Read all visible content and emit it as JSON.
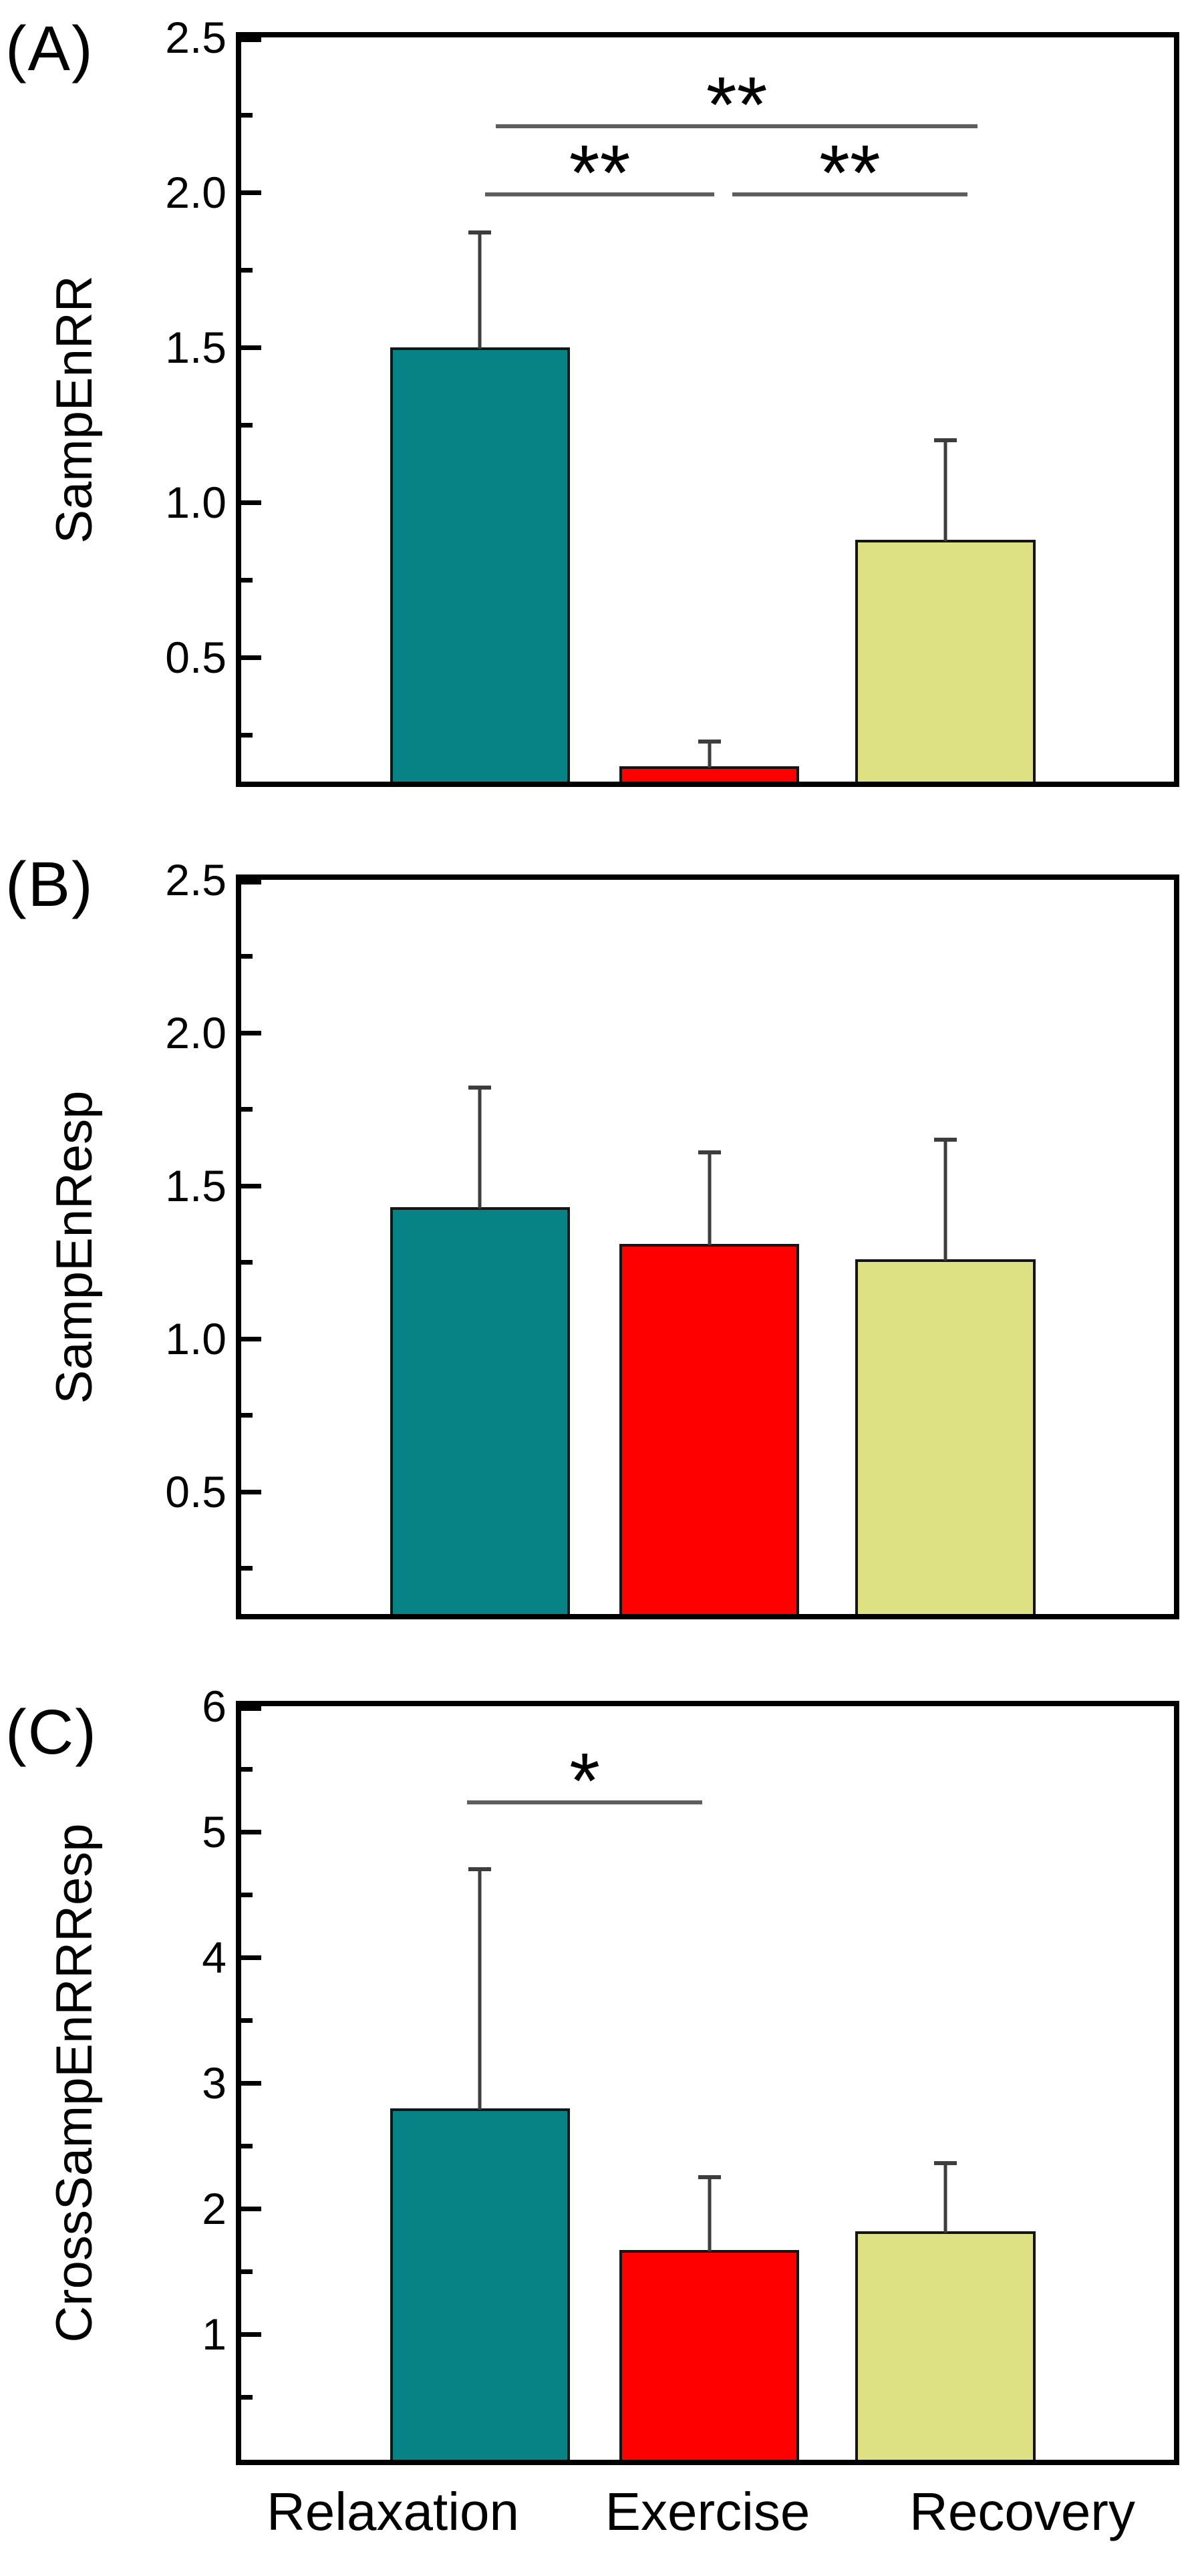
{
  "figure": {
    "x_axis_labels": [
      "Relaxation",
      "Exercise",
      "Recovery"
    ],
    "colors": {
      "relaxation_bar": "#088385",
      "exercise_bar": "#ff0000",
      "recovery_bar": "#dde083",
      "bar_outline": "#151515",
      "error_bar": "#3d3d3d",
      "sig_line": "#5e5e5e",
      "axis": "#000000",
      "background": "#ffffff",
      "text": "#000000"
    }
  },
  "chart_data": [
    {
      "type": "bar",
      "panel_label": "(A)",
      "ylabel": "SampEnRR",
      "categories": [
        "Relaxation",
        "Exercise",
        "Recovery"
      ],
      "values": [
        1.5,
        0.15,
        0.88
      ],
      "error_top": [
        1.87,
        0.23,
        1.2
      ],
      "ylim": [
        0.1,
        2.5
      ],
      "major_ticks": [
        0.5,
        1.0,
        1.5,
        2.0,
        2.5
      ],
      "tick_labels": [
        "0.5",
        "1.0",
        "1.5",
        "2.0",
        "2.5"
      ],
      "minor_ticks": [
        0.25,
        0.75,
        1.25,
        1.75,
        2.25
      ],
      "bar_colors": [
        "#088385",
        "#ff0000",
        "#dde083"
      ],
      "grid": false,
      "legend": null,
      "significance": [
        {
          "from": 0,
          "to": 1,
          "y": 2.0,
          "label": "**",
          "dx1": 8,
          "dx2": 7
        },
        {
          "from": 1,
          "to": 2,
          "y": 2.0,
          "label": "**",
          "dx1": 34,
          "dx2": 33
        },
        {
          "from": 0,
          "to": 2,
          "y": 2.22,
          "label": "**",
          "dx1": 24,
          "dx2": 48
        }
      ]
    },
    {
      "type": "bar",
      "panel_label": "(B)",
      "ylabel": "SampEnResp",
      "categories": [
        "Relaxation",
        "Exercise",
        "Recovery"
      ],
      "values": [
        1.43,
        1.31,
        1.26
      ],
      "error_top": [
        1.82,
        1.61,
        1.65
      ],
      "ylim": [
        0.1,
        2.5
      ],
      "major_ticks": [
        0.5,
        1.0,
        1.5,
        2.0,
        2.5
      ],
      "tick_labels": [
        "0.5",
        "1.0",
        "1.5",
        "2.0",
        "2.5"
      ],
      "minor_ticks": [
        0.25,
        0.75,
        1.25,
        1.75,
        2.25
      ],
      "bar_colors": [
        "#088385",
        "#ff0000",
        "#dde083"
      ],
      "grid": false,
      "legend": null,
      "significance": []
    },
    {
      "type": "bar",
      "panel_label": "(C)",
      "ylabel": "CrossSampEnRRResp",
      "categories": [
        "Relaxation",
        "Exercise",
        "Recovery"
      ],
      "values": [
        2.8,
        1.67,
        1.82
      ],
      "error_top": [
        4.7,
        2.25,
        2.36
      ],
      "ylim": [
        0,
        6
      ],
      "major_ticks": [
        1,
        2,
        3,
        4,
        5,
        6
      ],
      "tick_labels": [
        "1",
        "2",
        "3",
        "4",
        "5",
        "6"
      ],
      "minor_ticks": [
        0.5,
        1.5,
        2.5,
        3.5,
        4.5,
        5.5
      ],
      "bar_colors": [
        "#088385",
        "#ff0000",
        "#dde083"
      ],
      "grid": false,
      "legend": null,
      "significance": [
        {
          "from": 0,
          "to": 1,
          "y": 5.25,
          "label": "*",
          "dx1": -19,
          "dx2": -11
        }
      ]
    }
  ]
}
